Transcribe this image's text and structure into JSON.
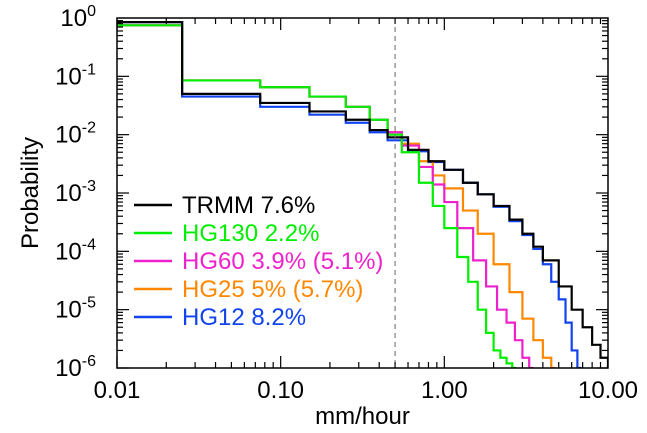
{
  "chart_data": {
    "type": "line",
    "xlabel": "mm/hour",
    "ylabel": "Probability",
    "x_scale": "log",
    "y_scale": "log",
    "xlim": [
      0.01,
      10
    ],
    "ylim": [
      1e-06,
      1
    ],
    "x_ticks": [
      {
        "value": 0.01,
        "label": "0.01"
      },
      {
        "value": 0.1,
        "label": "0.10"
      },
      {
        "value": 1,
        "label": "1.00"
      },
      {
        "value": 10,
        "label": "10.00"
      }
    ],
    "y_ticks": [
      {
        "value": 1,
        "base": "10",
        "exp": "0"
      },
      {
        "value": 0.1,
        "base": "10",
        "exp": "-1"
      },
      {
        "value": 0.01,
        "base": "10",
        "exp": "-2"
      },
      {
        "value": 0.001,
        "base": "10",
        "exp": "-3"
      },
      {
        "value": 0.0001,
        "base": "10",
        "exp": "-4"
      },
      {
        "value": 1e-05,
        "base": "10",
        "exp": "-5"
      },
      {
        "value": 1e-06,
        "base": "10",
        "exp": "-6"
      }
    ],
    "reference_line_x": 0.5,
    "grid": false,
    "legend_position": "bottom-left",
    "series": [
      {
        "name": "TRMM 7.6%",
        "color": "#000000",
        "x": [
          0.01,
          0.025,
          0.075,
          0.15,
          0.25,
          0.35,
          0.45,
          0.6,
          0.8,
          1.0,
          1.3,
          1.6,
          2.0,
          2.5,
          3.0,
          3.5,
          4.0,
          5.0,
          6.0,
          7.0,
          8.0,
          9.0,
          10.0
        ],
        "y": [
          0.85,
          0.05,
          0.035,
          0.025,
          0.018,
          0.012,
          0.009,
          0.0055,
          0.0035,
          0.0025,
          0.0015,
          0.00095,
          0.0006,
          0.00035,
          0.0002,
          0.00012,
          7e-05,
          2.5e-05,
          1e-05,
          5e-06,
          2.5e-06,
          1.5e-06,
          1e-06
        ]
      },
      {
        "name": "HG130 2.2%",
        "color": "#00ee00",
        "x": [
          0.01,
          0.025,
          0.075,
          0.15,
          0.25,
          0.35,
          0.45,
          0.55,
          0.7,
          0.85,
          1.0,
          1.2,
          1.4,
          1.6,
          1.8,
          2.0,
          2.2,
          2.4,
          2.6
        ],
        "y": [
          0.75,
          0.085,
          0.065,
          0.045,
          0.03,
          0.018,
          0.01,
          0.005,
          0.0015,
          0.0006,
          0.00025,
          8e-05,
          3e-05,
          1e-05,
          4e-06,
          2e-06,
          1.5e-06,
          1.2e-06,
          1e-06
        ]
      },
      {
        "name": "HG60 3.9% (5.1%)",
        "color": "#ee22cc",
        "x": [
          0.01,
          0.025,
          0.075,
          0.15,
          0.25,
          0.35,
          0.45,
          0.55,
          0.7,
          0.85,
          1.0,
          1.2,
          1.5,
          1.8,
          2.1,
          2.4,
          2.7,
          3.0,
          3.3
        ],
        "y": [
          0.75,
          0.085,
          0.065,
          0.045,
          0.03,
          0.018,
          0.011,
          0.0065,
          0.0028,
          0.0014,
          0.0007,
          0.00025,
          7e-05,
          2.5e-05,
          1e-05,
          6e-06,
          3e-06,
          1.5e-06,
          1e-06
        ]
      },
      {
        "name": "HG25 5% (5.7%)",
        "color": "#ff8800",
        "x": [
          0.01,
          0.025,
          0.075,
          0.15,
          0.25,
          0.35,
          0.45,
          0.55,
          0.7,
          0.85,
          1.0,
          1.3,
          1.6,
          2.0,
          2.5,
          3.0,
          3.5,
          4.0,
          4.5
        ],
        "y": [
          0.75,
          0.085,
          0.065,
          0.045,
          0.03,
          0.018,
          0.011,
          0.007,
          0.0035,
          0.002,
          0.0012,
          0.0005,
          0.0002,
          6e-05,
          2e-05,
          7e-06,
          3e-06,
          1.5e-06,
          1e-06
        ]
      },
      {
        "name": "HG12 8.2%",
        "color": "#1144ee",
        "x": [
          0.01,
          0.025,
          0.075,
          0.15,
          0.25,
          0.35,
          0.45,
          0.6,
          0.8,
          1.0,
          1.3,
          1.6,
          2.0,
          2.5,
          3.0,
          3.5,
          4.0,
          4.5,
          5.0,
          5.5,
          6.0,
          6.5
        ],
        "y": [
          0.85,
          0.045,
          0.03,
          0.022,
          0.016,
          0.011,
          0.008,
          0.0052,
          0.0034,
          0.0025,
          0.0015,
          0.00095,
          0.00058,
          0.00033,
          0.00019,
          0.00011,
          6e-05,
          3e-05,
          1.5e-05,
          6e-06,
          2e-06,
          1e-06
        ]
      }
    ]
  }
}
